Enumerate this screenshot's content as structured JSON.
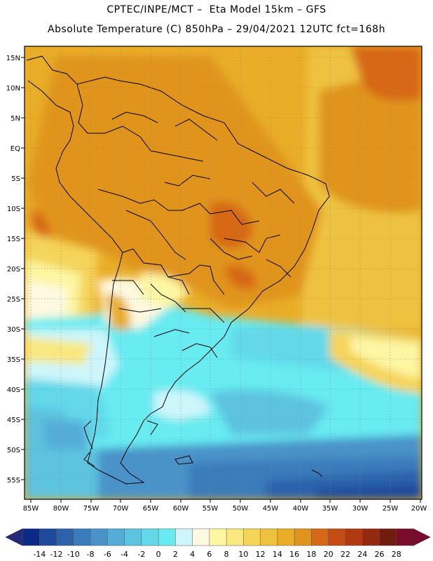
{
  "header": {
    "line1": "CPTEC/INPE/MCT –  Eta Model 15km – GFS",
    "line2": "Absolute Temperature (C) 850hPa – 29/04/2021 12UTC fct=168h"
  },
  "lat_labels": [
    "15N",
    "10N",
    "5N",
    "EQ",
    "5S",
    "10S",
    "15S",
    "20S",
    "25S",
    "30S",
    "35S",
    "40S",
    "45S",
    "50S",
    "55S"
  ],
  "lon_labels": [
    "85W",
    "80W",
    "75W",
    "70W",
    "65W",
    "60W",
    "55W",
    "50W",
    "45W",
    "40W",
    "35W",
    "30W",
    "25W",
    "20W"
  ],
  "legend": {
    "labels": [
      "-14",
      "-12",
      "-10",
      "-8",
      "-6",
      "-4",
      "-2",
      "0",
      "2",
      "4",
      "6",
      "8",
      "10",
      "12",
      "14",
      "16",
      "18",
      "20",
      "22",
      "24",
      "26",
      "28"
    ],
    "colors": [
      "#0b2a85",
      "#1d4a9c",
      "#2b62ab",
      "#3a7bbb",
      "#4a93c9",
      "#55acd6",
      "#5dc3df",
      "#62d8e9",
      "#67ebf1",
      "#cdf6fb",
      "#fef9e0",
      "#fdf6a3",
      "#f9e880",
      "#f5d45a",
      "#eec23f",
      "#e9ad28",
      "#e0941d",
      "#d76817",
      "#c54d13",
      "#b13a10",
      "#932a10",
      "#6f1d0c",
      "#780c2a"
    ],
    "low_arrow_color": "#26297a",
    "high_arrow_color": "#7a0a2e"
  }
}
